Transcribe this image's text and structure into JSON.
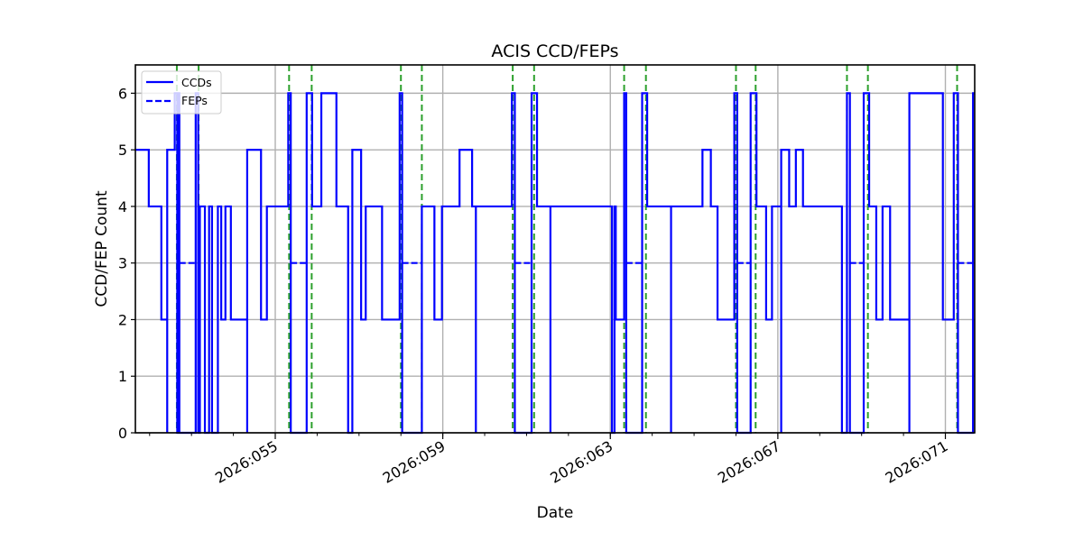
{
  "chart_data": {
    "type": "line",
    "subtype": "step",
    "title": "ACIS CCD/FEPs",
    "xlabel": "Date",
    "ylabel": "CCD/FEP Count",
    "ylim": [
      0,
      6.5
    ],
    "xlim_day": [
      51.66,
      71.7
    ],
    "yticks": [
      0,
      1,
      2,
      3,
      4,
      5,
      6
    ],
    "xticks": [
      {
        "day": 55,
        "label": "2026:055"
      },
      {
        "day": 59,
        "label": "2026:059"
      },
      {
        "day": 63,
        "label": "2026:063"
      },
      {
        "day": 67,
        "label": "2026:067"
      },
      {
        "day": 71,
        "label": "2026:071"
      }
    ],
    "minor_xticks_every_day": true,
    "grid": true,
    "legend": {
      "position": "upper left",
      "entries": [
        {
          "label": "CCDs",
          "style": "solid",
          "color": "#0000ff"
        },
        {
          "label": "FEPs",
          "style": "dashed",
          "color": "#0000ff"
        }
      ]
    },
    "colors": {
      "series": "#0000ff",
      "event_lines": "#2ca02c",
      "grid": "#b0b0b0"
    },
    "event_lines_day": [
      52.65,
      53.17,
      55.33,
      55.87,
      58.0,
      58.5,
      60.67,
      61.18,
      63.33,
      63.85,
      66.0,
      66.47,
      68.65,
      69.15,
      71.28
    ],
    "series": [
      {
        "name": "CCDs",
        "style": "solid",
        "steps": [
          [
            51.66,
            5
          ],
          [
            51.98,
            4
          ],
          [
            52.28,
            2
          ],
          [
            52.42,
            0
          ],
          [
            52.42,
            5
          ],
          [
            52.6,
            6
          ],
          [
            52.66,
            0
          ],
          [
            52.69,
            6
          ],
          [
            52.71,
            0
          ],
          [
            53.1,
            6
          ],
          [
            53.16,
            0
          ],
          [
            53.2,
            4
          ],
          [
            53.32,
            0
          ],
          [
            53.42,
            4
          ],
          [
            53.49,
            0
          ],
          [
            53.63,
            4
          ],
          [
            53.71,
            2
          ],
          [
            53.81,
            4
          ],
          [
            53.94,
            2
          ],
          [
            54.33,
            0
          ],
          [
            54.33,
            5
          ],
          [
            54.66,
            2
          ],
          [
            54.8,
            4
          ],
          [
            55.31,
            6
          ],
          [
            55.37,
            0
          ],
          [
            55.75,
            6
          ],
          [
            55.88,
            4
          ],
          [
            56.1,
            6
          ],
          [
            56.46,
            4
          ],
          [
            56.74,
            0
          ],
          [
            56.84,
            5
          ],
          [
            57.05,
            2
          ],
          [
            57.16,
            4
          ],
          [
            57.55,
            2
          ],
          [
            57.97,
            6
          ],
          [
            58.03,
            0
          ],
          [
            58.5,
            4
          ],
          [
            58.8,
            2
          ],
          [
            58.98,
            4
          ],
          [
            59.4,
            4
          ],
          [
            59.4,
            5
          ],
          [
            59.7,
            4
          ],
          [
            59.79,
            0
          ],
          [
            59.79,
            4
          ],
          [
            60.65,
            6
          ],
          [
            60.72,
            0
          ],
          [
            61.12,
            6
          ],
          [
            61.25,
            4
          ],
          [
            61.57,
            0
          ],
          [
            61.57,
            4
          ],
          [
            63.04,
            0
          ],
          [
            63.1,
            4
          ],
          [
            63.13,
            2
          ],
          [
            63.33,
            6
          ],
          [
            63.38,
            0
          ],
          [
            63.76,
            6
          ],
          [
            63.88,
            4
          ],
          [
            64.45,
            0
          ],
          [
            64.45,
            4
          ],
          [
            65.2,
            5
          ],
          [
            65.4,
            4
          ],
          [
            65.56,
            2
          ],
          [
            65.96,
            6
          ],
          [
            66.03,
            0
          ],
          [
            66.35,
            6
          ],
          [
            66.49,
            4
          ],
          [
            66.72,
            2
          ],
          [
            66.86,
            4
          ],
          [
            67.08,
            0
          ],
          [
            67.08,
            5
          ],
          [
            67.27,
            4
          ],
          [
            67.43,
            5
          ],
          [
            67.6,
            4
          ],
          [
            68.53,
            0
          ],
          [
            68.65,
            6
          ],
          [
            68.72,
            0
          ],
          [
            69.05,
            6
          ],
          [
            69.18,
            4
          ],
          [
            69.35,
            2
          ],
          [
            69.5,
            4
          ],
          [
            69.68,
            2
          ],
          [
            70.14,
            0
          ],
          [
            70.14,
            6
          ],
          [
            70.94,
            2
          ],
          [
            71.2,
            6
          ],
          [
            71.3,
            0
          ],
          [
            71.66,
            6
          ],
          [
            71.7,
            6
          ]
        ]
      },
      {
        "name": "FEPs",
        "style": "dashed",
        "segments_at_3": [
          [
            52.71,
            53.1
          ],
          [
            55.37,
            55.75
          ],
          [
            58.03,
            58.5
          ],
          [
            60.72,
            61.12
          ],
          [
            63.38,
            63.76
          ],
          [
            66.03,
            66.35
          ],
          [
            68.72,
            69.05
          ],
          [
            71.3,
            71.66
          ]
        ],
        "note": "FEPs otherwise overlap CCDs"
      }
    ]
  }
}
